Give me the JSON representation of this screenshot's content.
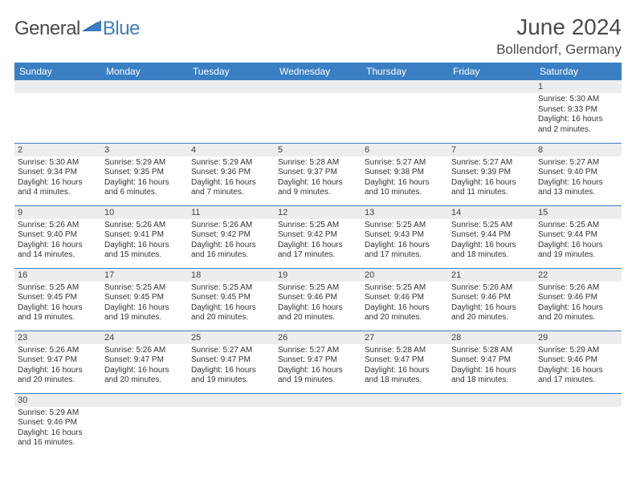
{
  "brand": {
    "part1": "General",
    "part2": "Blue"
  },
  "title": "June 2024",
  "location": "Bollendorf, Germany",
  "colors": {
    "header_bg": "#3a7fc4",
    "header_text": "#ffffff",
    "daynum_bg": "#ededed",
    "border": "#3a7fc4",
    "text": "#333333",
    "brand_gray": "#4a4a4a",
    "brand_blue": "#3a7fc4"
  },
  "weekdays": [
    "Sunday",
    "Monday",
    "Tuesday",
    "Wednesday",
    "Thursday",
    "Friday",
    "Saturday"
  ],
  "layout": {
    "first_weekday_index": 6,
    "days_in_month": 30,
    "rows": 6,
    "cols": 7
  },
  "days": {
    "1": {
      "sunrise": "5:30 AM",
      "sunset": "9:33 PM",
      "daylight": "16 hours and 2 minutes."
    },
    "2": {
      "sunrise": "5:30 AM",
      "sunset": "9:34 PM",
      "daylight": "16 hours and 4 minutes."
    },
    "3": {
      "sunrise": "5:29 AM",
      "sunset": "9:35 PM",
      "daylight": "16 hours and 6 minutes."
    },
    "4": {
      "sunrise": "5:29 AM",
      "sunset": "9:36 PM",
      "daylight": "16 hours and 7 minutes."
    },
    "5": {
      "sunrise": "5:28 AM",
      "sunset": "9:37 PM",
      "daylight": "16 hours and 9 minutes."
    },
    "6": {
      "sunrise": "5:27 AM",
      "sunset": "9:38 PM",
      "daylight": "16 hours and 10 minutes."
    },
    "7": {
      "sunrise": "5:27 AM",
      "sunset": "9:39 PM",
      "daylight": "16 hours and 11 minutes."
    },
    "8": {
      "sunrise": "5:27 AM",
      "sunset": "9:40 PM",
      "daylight": "16 hours and 13 minutes."
    },
    "9": {
      "sunrise": "5:26 AM",
      "sunset": "9:40 PM",
      "daylight": "16 hours and 14 minutes."
    },
    "10": {
      "sunrise": "5:26 AM",
      "sunset": "9:41 PM",
      "daylight": "16 hours and 15 minutes."
    },
    "11": {
      "sunrise": "5:26 AM",
      "sunset": "9:42 PM",
      "daylight": "16 hours and 16 minutes."
    },
    "12": {
      "sunrise": "5:25 AM",
      "sunset": "9:42 PM",
      "daylight": "16 hours and 17 minutes."
    },
    "13": {
      "sunrise": "5:25 AM",
      "sunset": "9:43 PM",
      "daylight": "16 hours and 17 minutes."
    },
    "14": {
      "sunrise": "5:25 AM",
      "sunset": "9:44 PM",
      "daylight": "16 hours and 18 minutes."
    },
    "15": {
      "sunrise": "5:25 AM",
      "sunset": "9:44 PM",
      "daylight": "16 hours and 19 minutes."
    },
    "16": {
      "sunrise": "5:25 AM",
      "sunset": "9:45 PM",
      "daylight": "16 hours and 19 minutes."
    },
    "17": {
      "sunrise": "5:25 AM",
      "sunset": "9:45 PM",
      "daylight": "16 hours and 19 minutes."
    },
    "18": {
      "sunrise": "5:25 AM",
      "sunset": "9:45 PM",
      "daylight": "16 hours and 20 minutes."
    },
    "19": {
      "sunrise": "5:25 AM",
      "sunset": "9:46 PM",
      "daylight": "16 hours and 20 minutes."
    },
    "20": {
      "sunrise": "5:25 AM",
      "sunset": "9:46 PM",
      "daylight": "16 hours and 20 minutes."
    },
    "21": {
      "sunrise": "5:26 AM",
      "sunset": "9:46 PM",
      "daylight": "16 hours and 20 minutes."
    },
    "22": {
      "sunrise": "5:26 AM",
      "sunset": "9:46 PM",
      "daylight": "16 hours and 20 minutes."
    },
    "23": {
      "sunrise": "5:26 AM",
      "sunset": "9:47 PM",
      "daylight": "16 hours and 20 minutes."
    },
    "24": {
      "sunrise": "5:26 AM",
      "sunset": "9:47 PM",
      "daylight": "16 hours and 20 minutes."
    },
    "25": {
      "sunrise": "5:27 AM",
      "sunset": "9:47 PM",
      "daylight": "16 hours and 19 minutes."
    },
    "26": {
      "sunrise": "5:27 AM",
      "sunset": "9:47 PM",
      "daylight": "16 hours and 19 minutes."
    },
    "27": {
      "sunrise": "5:28 AM",
      "sunset": "9:47 PM",
      "daylight": "16 hours and 18 minutes."
    },
    "28": {
      "sunrise": "5:28 AM",
      "sunset": "9:47 PM",
      "daylight": "16 hours and 18 minutes."
    },
    "29": {
      "sunrise": "5:29 AM",
      "sunset": "9:46 PM",
      "daylight": "16 hours and 17 minutes."
    },
    "30": {
      "sunrise": "5:29 AM",
      "sunset": "9:46 PM",
      "daylight": "16 hours and 16 minutes."
    }
  },
  "labels": {
    "sunrise_prefix": "Sunrise: ",
    "sunset_prefix": "Sunset: ",
    "daylight_prefix": "Daylight: "
  }
}
